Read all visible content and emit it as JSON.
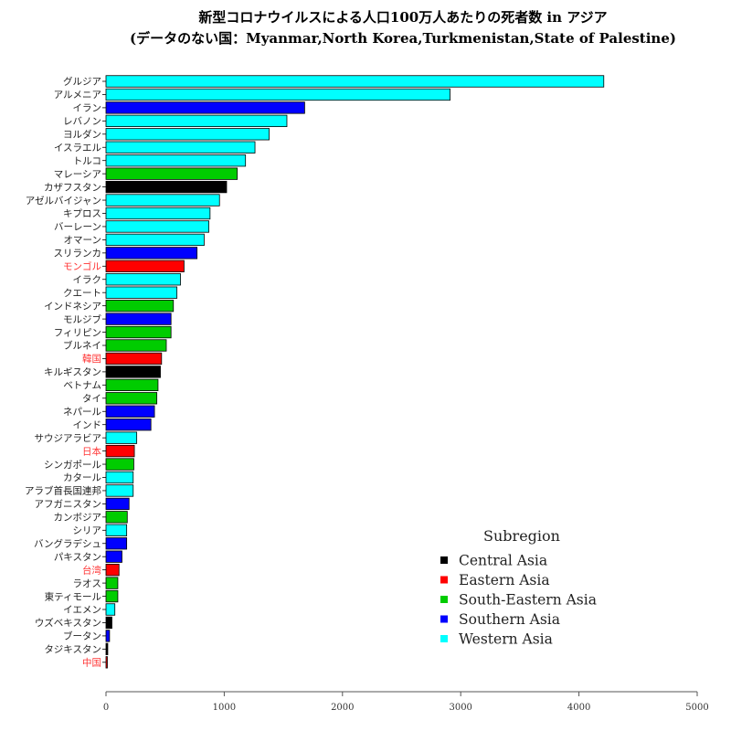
{
  "chart_data": {
    "type": "bar",
    "orientation": "horizontal",
    "title": "新型コロナウイルスによる人口100万人あたりの死者数 in アジア",
    "subtitle": "(データのない国：Myanmar,North Korea,Turkmenistan,State of Palestine)",
    "xlim": [
      0,
      5000
    ],
    "xticks": [
      0,
      1000,
      2000,
      3000,
      4000,
      5000
    ],
    "grid": false,
    "legend": {
      "title": "Subregion",
      "position": "bottom-right",
      "entries": [
        {
          "name": "Central Asia",
          "color": "#000000"
        },
        {
          "name": "Eastern Asia",
          "color": "#ff0000"
        },
        {
          "name": "South-Eastern Asia",
          "color": "#00cc00"
        },
        {
          "name": "Southern Asia",
          "color": "#0000ff"
        },
        {
          "name": "Western Asia",
          "color": "#00ffff"
        }
      ]
    },
    "highlight_label_color": "#ff3333",
    "bars": [
      {
        "label": "グルジア",
        "value": 4210,
        "subregion": "Western Asia"
      },
      {
        "label": "アルメニア",
        "value": 2910,
        "subregion": "Western Asia"
      },
      {
        "label": "イラン",
        "value": 1680,
        "subregion": "Southern Asia"
      },
      {
        "label": "レバノン",
        "value": 1530,
        "subregion": "Western Asia"
      },
      {
        "label": "ヨルダン",
        "value": 1380,
        "subregion": "Western Asia"
      },
      {
        "label": "イスラエル",
        "value": 1260,
        "subregion": "Western Asia"
      },
      {
        "label": "トルコ",
        "value": 1180,
        "subregion": "Western Asia"
      },
      {
        "label": "マレーシア",
        "value": 1110,
        "subregion": "South-Eastern Asia"
      },
      {
        "label": "カザフスタン",
        "value": 1020,
        "subregion": "Central Asia"
      },
      {
        "label": "アゼルバイジャン",
        "value": 960,
        "subregion": "Western Asia"
      },
      {
        "label": "キプロス",
        "value": 880,
        "subregion": "Western Asia"
      },
      {
        "label": "バーレーン",
        "value": 870,
        "subregion": "Western Asia"
      },
      {
        "label": "オマーン",
        "value": 830,
        "subregion": "Western Asia"
      },
      {
        "label": "スリランカ",
        "value": 770,
        "subregion": "Southern Asia"
      },
      {
        "label": "モンゴル",
        "value": 660,
        "subregion": "Eastern Asia"
      },
      {
        "label": "イラク",
        "value": 630,
        "subregion": "Western Asia"
      },
      {
        "label": "クエート",
        "value": 600,
        "subregion": "Western Asia"
      },
      {
        "label": "インドネシア",
        "value": 570,
        "subregion": "South-Eastern Asia"
      },
      {
        "label": "モルジブ",
        "value": 550,
        "subregion": "Southern Asia"
      },
      {
        "label": "フィリピン",
        "value": 550,
        "subregion": "South-Eastern Asia"
      },
      {
        "label": "ブルネイ",
        "value": 510,
        "subregion": "South-Eastern Asia"
      },
      {
        "label": "韓国",
        "value": 470,
        "subregion": "Eastern Asia"
      },
      {
        "label": "キルギスタン",
        "value": 460,
        "subregion": "Central Asia"
      },
      {
        "label": "ベトナム",
        "value": 440,
        "subregion": "South-Eastern Asia"
      },
      {
        "label": "タイ",
        "value": 430,
        "subregion": "South-Eastern Asia"
      },
      {
        "label": "ネパール",
        "value": 410,
        "subregion": "Southern Asia"
      },
      {
        "label": "インド",
        "value": 380,
        "subregion": "Southern Asia"
      },
      {
        "label": "サウジアラビア",
        "value": 260,
        "subregion": "Western Asia"
      },
      {
        "label": "日本",
        "value": 240,
        "subregion": "Eastern Asia"
      },
      {
        "label": "シンガポール",
        "value": 235,
        "subregion": "South-Eastern Asia"
      },
      {
        "label": "カタール",
        "value": 230,
        "subregion": "Western Asia"
      },
      {
        "label": "アラブ首長国連邦",
        "value": 230,
        "subregion": "Western Asia"
      },
      {
        "label": "アフガニスタン",
        "value": 195,
        "subregion": "Southern Asia"
      },
      {
        "label": "カンボジア",
        "value": 180,
        "subregion": "South-Eastern Asia"
      },
      {
        "label": "シリア",
        "value": 175,
        "subregion": "Western Asia"
      },
      {
        "label": "バングラデシュ",
        "value": 175,
        "subregion": "Southern Asia"
      },
      {
        "label": "パキスタン",
        "value": 135,
        "subregion": "Southern Asia"
      },
      {
        "label": "台湾",
        "value": 110,
        "subregion": "Eastern Asia"
      },
      {
        "label": "ラオス",
        "value": 100,
        "subregion": "South-Eastern Asia"
      },
      {
        "label": "東ティモール",
        "value": 100,
        "subregion": "South-Eastern Asia"
      },
      {
        "label": "イエメン",
        "value": 75,
        "subregion": "Western Asia"
      },
      {
        "label": "ウズベキスタン",
        "value": 50,
        "subregion": "Central Asia"
      },
      {
        "label": "ブータン",
        "value": 30,
        "subregion": "Southern Asia"
      },
      {
        "label": "タジキスタン",
        "value": 15,
        "subregion": "Central Asia"
      },
      {
        "label": "中国",
        "value": 10,
        "subregion": "Eastern Asia"
      }
    ]
  }
}
